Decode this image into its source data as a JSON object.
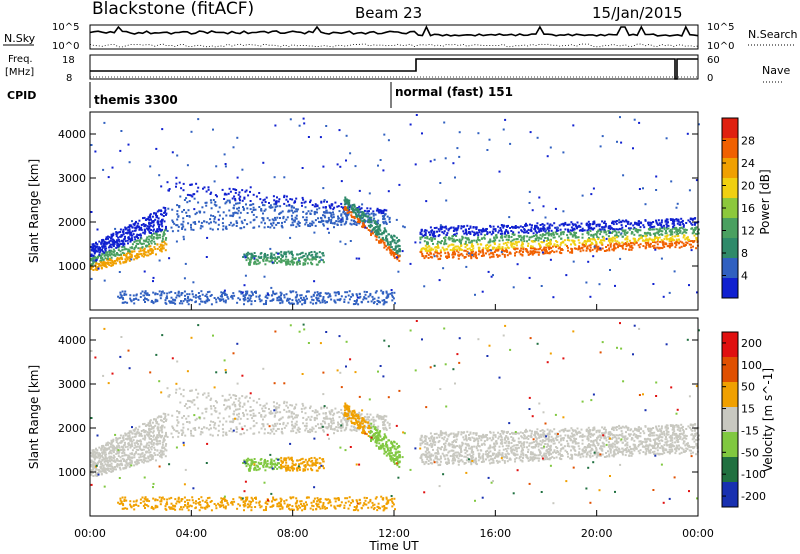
{
  "header": {
    "title": "Blackstone (fitACF)",
    "beam": "Beam 23",
    "date": "15/Jan/2015"
  },
  "top_panels": {
    "nsky_label": "N.Sky",
    "nsearch_label": "N.Search",
    "nsky_ticks": [
      "10^5",
      "10^0"
    ],
    "nsearch_ticks": [
      "10^5",
      "10^0"
    ],
    "freq_label_1": "Freq.",
    "freq_label_2": "[MHz]",
    "freq_ticks": [
      "18",
      "8"
    ],
    "nave_label": "Nave",
    "nave_ticks": [
      "60",
      "0"
    ],
    "cpid_label": "CPID",
    "cpid_modes": [
      {
        "name": "themis 3300",
        "start_hour": 0
      },
      {
        "name": "normal (fast) 151",
        "start_hour": 12
      }
    ]
  },
  "colors": {
    "power_scale": [
      "#1020d0",
      "#3060c0",
      "#2f8a6a",
      "#4aa060",
      "#8cc83c",
      "#f0d010",
      "#f0a000",
      "#f06000",
      "#e02010"
    ],
    "velocity_scale": [
      "#1830b0",
      "#207040",
      "#80c840",
      "#c8c8c0",
      "#f0a000",
      "#e05000",
      "#e01010"
    ]
  },
  "chart_data": [
    {
      "type": "heatmap",
      "name": "power",
      "ylabel": "Slant Range [km]",
      "xlabel": "Time UT",
      "x_ticks": [
        "00:00",
        "04:00",
        "08:00",
        "12:00",
        "16:00",
        "20:00",
        "00:00"
      ],
      "x_range_hours": [
        0,
        24
      ],
      "y_range_km": [
        0,
        4500
      ],
      "y_ticks": [
        1000,
        2000,
        3000,
        4000
      ],
      "colorbar_label": "Power [dB]",
      "colorbar_ticks": [
        "4",
        "8",
        "12",
        "16",
        "20",
        "24",
        "28"
      ],
      "colorbar_range": [
        0,
        32
      ]
    },
    {
      "type": "heatmap",
      "name": "velocity",
      "ylabel": "Slant Range [km]",
      "xlabel": "Time UT",
      "x_ticks": [
        "00:00",
        "04:00",
        "08:00",
        "12:00",
        "16:00",
        "20:00",
        "00:00"
      ],
      "x_range_hours": [
        0,
        24
      ],
      "y_range_km": [
        0,
        4500
      ],
      "y_ticks": [
        1000,
        2000,
        3000,
        4000
      ],
      "colorbar_label": "Velocity [m s^-1]",
      "colorbar_ticks": [
        "200",
        "100",
        "50",
        "15",
        "-15",
        "-50",
        "-100",
        "-200"
      ]
    }
  ]
}
